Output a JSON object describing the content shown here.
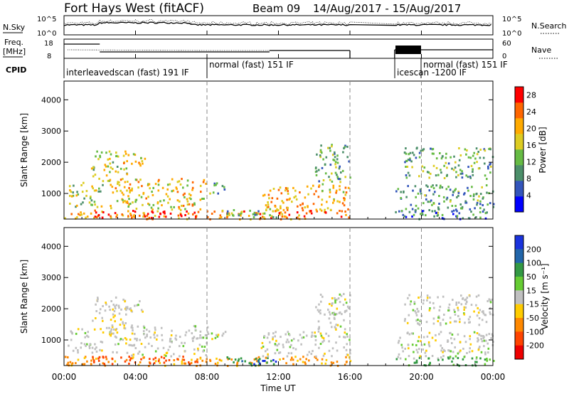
{
  "chart_data": {
    "type": "heatmap",
    "title": {
      "radar": "Fort Hays West (fitACF)",
      "beam": "Beam 09",
      "dates": "14/Aug/2017 - 15/Aug/2017"
    },
    "xlabel": "Time UT",
    "x_ticks": [
      "00:00",
      "04:00",
      "08:00",
      "12:00",
      "16:00",
      "20:00",
      "00:00"
    ],
    "xlim_hours": [
      0,
      24
    ],
    "data_gap_hours": [
      16.0,
      18.5
    ],
    "top_panels": {
      "noise": {
        "left_label": "N.Sky",
        "right_label": "N.Search",
        "left_ticks": [
          "10^5",
          "10^0"
        ],
        "right_ticks": [
          "10^5",
          "10^0"
        ]
      },
      "freq": {
        "left_label_line1": "Freq.",
        "left_label_line2": "[MHz]",
        "left_ticks": [
          "18",
          "8"
        ],
        "right_label": "Nave",
        "right_ticks": [
          "60",
          "0"
        ]
      },
      "cpid": {
        "label": "CPID",
        "segments": [
          {
            "start_h": 0.0,
            "end_h": 8.0,
            "text": "interleavedscan (fast) 191 IF"
          },
          {
            "start_h": 8.0,
            "end_h": 16.0,
            "text": "normal (fast) 151 IF"
          },
          {
            "start_h": 18.5,
            "end_h": 20.0,
            "text": "icescan -1200 IF"
          },
          {
            "start_h": 20.0,
            "end_h": 24.0,
            "text": "normal (fast) 151 IF"
          }
        ]
      }
    },
    "power_panel": {
      "ylabel": "Slant Range [km]",
      "y_ticks": [
        1000,
        2000,
        3000,
        4000
      ],
      "ylim_km": [
        180,
        4600
      ],
      "colorbar_label": "Power [dB]",
      "colorbar_ticks": [
        4,
        8,
        12,
        16,
        20,
        24,
        28
      ],
      "colorbar_range": [
        0,
        30
      ],
      "colors": [
        "#0000ff",
        "#3355bb",
        "#4c8f6a",
        "#66bb44",
        "#ddcc22",
        "#ffaa00",
        "#ff6600",
        "#ff0000"
      ]
    },
    "velocity_panel": {
      "ylabel": "Slant Range [km]",
      "y_ticks": [
        1000,
        2000,
        3000,
        4000
      ],
      "ylim_km": [
        180,
        4600
      ],
      "colorbar_label": "Velocity [m s⁻¹]",
      "colorbar_ticks": [
        "200",
        "100",
        "50",
        "15",
        "-15",
        "-50",
        "-100",
        "-200"
      ],
      "colors": [
        "#1a33dd",
        "#2266aa",
        "#339944",
        "#66cc33",
        "#c0c0c0",
        "#ffcc00",
        "#ff8800",
        "#ff4400",
        "#ee0000"
      ]
    },
    "echo_regions": [
      {
        "t0": 0.0,
        "t1": 16.0,
        "r0": 200,
        "r1": 500,
        "power": 22,
        "velocity": -60
      },
      {
        "t0": 1.5,
        "t1": 7.5,
        "r0": 250,
        "r1": 500,
        "power": 28,
        "velocity": -150
      },
      {
        "t0": 0.2,
        "t1": 2.2,
        "r0": 600,
        "r1": 1400,
        "power": 14,
        "velocity": 0
      },
      {
        "t0": 1.5,
        "t1": 3.5,
        "r0": 1400,
        "r1": 2400,
        "power": 16,
        "velocity": -5
      },
      {
        "t0": 3.0,
        "t1": 4.5,
        "r0": 1900,
        "r1": 2300,
        "power": 18,
        "velocity": 0
      },
      {
        "t0": 2.5,
        "t1": 8.0,
        "r0": 500,
        "r1": 1500,
        "power": 18,
        "velocity": 0
      },
      {
        "t0": 8.0,
        "t1": 9.0,
        "r0": 1000,
        "r1": 1400,
        "power": 10,
        "velocity": 0
      },
      {
        "t0": 9.0,
        "t1": 12.0,
        "r0": 200,
        "r1": 500,
        "power": 12,
        "velocity": 60
      },
      {
        "t0": 10.5,
        "t1": 12.0,
        "r0": 250,
        "r1": 400,
        "power": 10,
        "velocity": 200
      },
      {
        "t0": 11.0,
        "t1": 16.0,
        "r0": 500,
        "r1": 1300,
        "power": 20,
        "velocity": 0
      },
      {
        "t0": 14.0,
        "t1": 16.0,
        "r0": 1300,
        "r1": 2600,
        "power": 12,
        "velocity": 0
      },
      {
        "t0": 18.5,
        "t1": 24.0,
        "r0": 400,
        "r1": 1300,
        "power": 10,
        "velocity": 0
      },
      {
        "t0": 19.0,
        "t1": 24.0,
        "r0": 1500,
        "r1": 2500,
        "power": 12,
        "velocity": 0
      },
      {
        "t0": 18.5,
        "t1": 24.0,
        "r0": 200,
        "r1": 500,
        "power": 8,
        "velocity": 40
      }
    ]
  }
}
